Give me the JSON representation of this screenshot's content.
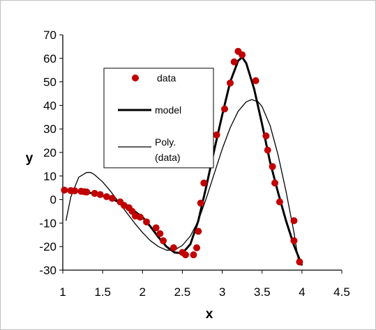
{
  "chart_data": {
    "type": "scatter",
    "xlabel": "x",
    "ylabel": "y",
    "xlim": [
      1,
      4.5
    ],
    "ylim": [
      -30,
      70
    ],
    "x_ticks": [
      "1",
      "1.5",
      "2",
      "2.5",
      "3",
      "3.5",
      "4",
      "4.5"
    ],
    "y_ticks": [
      "-30",
      "-20",
      "-10",
      "0",
      "10",
      "20",
      "30",
      "40",
      "50",
      "60",
      "70"
    ],
    "grid": false,
    "legend_position": "upper-left",
    "series": [
      {
        "name": "data",
        "kind": "markers",
        "color": "#c00000",
        "x": [
          1.02,
          1.1,
          1.15,
          1.23,
          1.27,
          1.3,
          1.4,
          1.47,
          1.55,
          1.62,
          1.72,
          1.77,
          1.83,
          1.87,
          1.91,
          1.97,
          2.05,
          2.17,
          2.22,
          2.26,
          2.39,
          2.5,
          2.54,
          2.64,
          2.68,
          2.7,
          2.73,
          2.77,
          2.85,
          2.93,
          3.03,
          3.1,
          3.15,
          3.2,
          3.25,
          3.42,
          3.55,
          3.57,
          3.63,
          3.66,
          3.72,
          3.9,
          3.9,
          3.97
        ],
        "y": [
          4,
          3.8,
          3.7,
          3.5,
          3.3,
          3.2,
          2.6,
          2.1,
          1.2,
          0.5,
          -1.0,
          -2.5,
          -3.5,
          -5.0,
          -7.0,
          -7.5,
          -9.5,
          -12.0,
          -14.5,
          -17.5,
          -20.5,
          -22.5,
          -23.5,
          -23.5,
          -20.5,
          -13.5,
          -1.5,
          7,
          16.5,
          27.5,
          38.5,
          49.5,
          58.5,
          63,
          61.5,
          50.5,
          27,
          21,
          14,
          7,
          -1,
          -9,
          -17.5,
          -26.5
        ]
      },
      {
        "name": "model",
        "kind": "line",
        "color": "#000000",
        "x": [
          1.0,
          1.2,
          1.4,
          1.6,
          1.8,
          2.0,
          2.1,
          2.2,
          2.3,
          2.4,
          2.5,
          2.6,
          2.7,
          2.8,
          2.9,
          3.0,
          3.1,
          3.2,
          3.25,
          3.3,
          3.4,
          3.5,
          3.6,
          3.7,
          3.8,
          3.9,
          4.0
        ],
        "y": [
          4,
          3.6,
          2.5,
          0.5,
          -2.5,
          -7.5,
          -11.5,
          -16.0,
          -20.0,
          -22.5,
          -22.8,
          -19.0,
          -9.0,
          5.5,
          21.0,
          36.0,
          50.0,
          59.0,
          60.5,
          58.0,
          47.0,
          32.0,
          16.0,
          3.0,
          -9.0,
          -19.5,
          -28.0
        ]
      },
      {
        "name": "Poly. (data)",
        "kind": "line",
        "color": "#000000",
        "x": [
          1.04,
          1.1,
          1.2,
          1.3,
          1.35,
          1.4,
          1.5,
          1.6,
          1.7,
          1.8,
          1.9,
          2.0,
          2.1,
          2.2,
          2.3,
          2.4,
          2.5,
          2.6,
          2.7,
          2.8,
          2.9,
          3.0,
          3.1,
          3.2,
          3.3,
          3.37,
          3.45,
          3.5,
          3.6,
          3.7,
          3.8,
          3.9,
          3.96
        ],
        "y": [
          -9,
          1,
          9.5,
          11.5,
          11.5,
          10.5,
          7.5,
          3.5,
          -1.0,
          -5.5,
          -10.0,
          -14.0,
          -17.5,
          -20.0,
          -21.5,
          -21.5,
          -19.5,
          -15.5,
          -9.0,
          0.5,
          11.0,
          21.5,
          30.5,
          37.5,
          41.5,
          42.5,
          41.5,
          39.5,
          31.5,
          19.0,
          3.5,
          -14.0,
          -27.0
        ]
      }
    ]
  }
}
